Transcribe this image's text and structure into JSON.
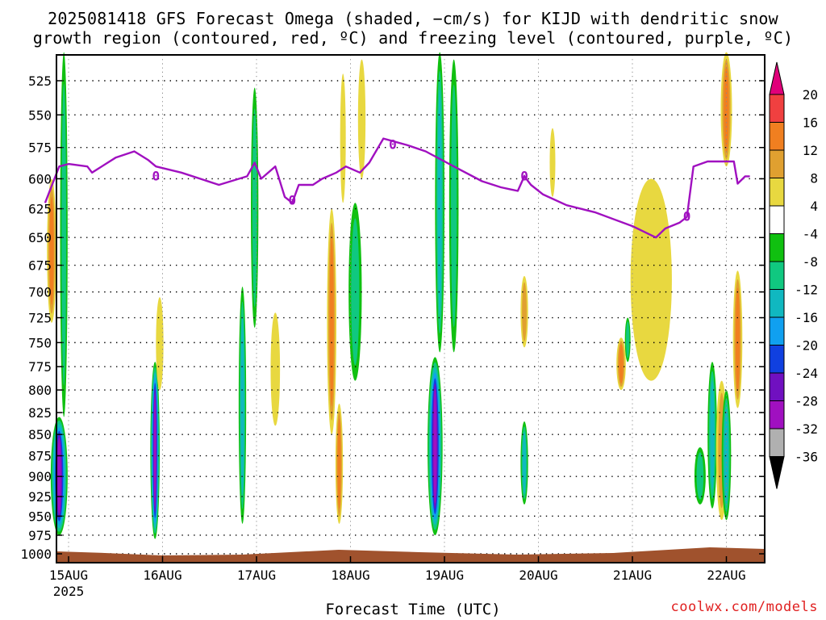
{
  "title_line1": "2025081418 GFS Forecast Omega (shaded, −cm/s) for KIJD with dendritic snow",
  "title_line2": "growth region (contoured, red, ºC) and freezing level (contoured, purple, ºC)",
  "credit": "coolwx.com/models",
  "chart_data": {
    "type": "heatmap",
    "xlabel": "Forecast Time (UTC)",
    "ylabel": "",
    "x_tick_labels": [
      "15AUG",
      "16AUG",
      "17AUG",
      "18AUG",
      "19AUG",
      "20AUG",
      "21AUG",
      "22AUG"
    ],
    "x_year_label": "2025",
    "x_range_days": [
      14.75,
      22.25
    ],
    "y_tick_labels": [
      525,
      550,
      575,
      600,
      625,
      650,
      675,
      700,
      725,
      750,
      775,
      800,
      825,
      850,
      875,
      900,
      925,
      950,
      975,
      1000
    ],
    "y_range_hpa": [
      500,
      1010
    ],
    "y_scale": "log-pressure",
    "grid": true,
    "colorbar_labels": [
      20,
      16,
      12,
      8,
      4,
      -4,
      -8,
      -12,
      -16,
      -20,
      -24,
      -28,
      -32,
      -36
    ],
    "colorbar_colors": [
      "#e0007a",
      "#f04040",
      "#f07f20",
      "#e0a030",
      "#e8d840",
      "#ffffff",
      "#10c010",
      "#10c880",
      "#10b8c0",
      "#10a0f0",
      "#1040e0",
      "#7010c0",
      "#a010c0",
      "#b0b0b0",
      "#000000"
    ],
    "freezing_level_color": "#a010c0",
    "freezing_level_label": "0",
    "freezing_level": [
      {
        "day": 14.75,
        "hpa": 620
      },
      {
        "day": 14.9,
        "hpa": 590
      },
      {
        "day": 15.0,
        "hpa": 588
      },
      {
        "day": 15.2,
        "hpa": 590
      },
      {
        "day": 15.25,
        "hpa": 595
      },
      {
        "day": 15.5,
        "hpa": 583
      },
      {
        "day": 15.7,
        "hpa": 578
      },
      {
        "day": 15.85,
        "hpa": 585
      },
      {
        "day": 15.93,
        "hpa": 590
      },
      {
        "day": 16.2,
        "hpa": 595
      },
      {
        "day": 16.6,
        "hpa": 605
      },
      {
        "day": 16.9,
        "hpa": 598
      },
      {
        "day": 16.98,
        "hpa": 587
      },
      {
        "day": 17.05,
        "hpa": 600
      },
      {
        "day": 17.2,
        "hpa": 590
      },
      {
        "day": 17.3,
        "hpa": 615
      },
      {
        "day": 17.38,
        "hpa": 620
      },
      {
        "day": 17.45,
        "hpa": 605
      },
      {
        "day": 17.6,
        "hpa": 605
      },
      {
        "day": 17.7,
        "hpa": 600
      },
      {
        "day": 17.85,
        "hpa": 595
      },
      {
        "day": 17.95,
        "hpa": 590
      },
      {
        "day": 18.1,
        "hpa": 595
      },
      {
        "day": 18.2,
        "hpa": 587
      },
      {
        "day": 18.35,
        "hpa": 568
      },
      {
        "day": 18.45,
        "hpa": 570
      },
      {
        "day": 18.6,
        "hpa": 573
      },
      {
        "day": 18.8,
        "hpa": 578
      },
      {
        "day": 19.1,
        "hpa": 590
      },
      {
        "day": 19.4,
        "hpa": 602
      },
      {
        "day": 19.6,
        "hpa": 607
      },
      {
        "day": 19.78,
        "hpa": 610
      },
      {
        "day": 19.85,
        "hpa": 598
      },
      {
        "day": 19.92,
        "hpa": 605
      },
      {
        "day": 20.05,
        "hpa": 613
      },
      {
        "day": 20.3,
        "hpa": 622
      },
      {
        "day": 20.6,
        "hpa": 628
      },
      {
        "day": 21.0,
        "hpa": 640
      },
      {
        "day": 21.25,
        "hpa": 650
      },
      {
        "day": 21.35,
        "hpa": 642
      },
      {
        "day": 21.5,
        "hpa": 637
      },
      {
        "day": 21.58,
        "hpa": 632
      },
      {
        "day": 21.65,
        "hpa": 590
      },
      {
        "day": 21.8,
        "hpa": 586
      },
      {
        "day": 22.08,
        "hpa": 586
      },
      {
        "day": 22.12,
        "hpa": 604
      },
      {
        "day": 22.2,
        "hpa": 598
      },
      {
        "day": 22.25,
        "hpa": 598
      }
    ],
    "omega_features": [
      {
        "day": 14.9,
        "top": 830,
        "bottom": 975,
        "halfwidth": 0.09,
        "peak": -28
      },
      {
        "day": 14.95,
        "top": 505,
        "bottom": 830,
        "halfwidth": 0.04,
        "peak": -8
      },
      {
        "day": 14.82,
        "top": 600,
        "bottom": 730,
        "halfwidth": 0.05,
        "peak": 12
      },
      {
        "day": 15.92,
        "top": 770,
        "bottom": 980,
        "halfwidth": 0.05,
        "peak": -28
      },
      {
        "day": 15.97,
        "top": 705,
        "bottom": 800,
        "halfwidth": 0.04,
        "peak": 4
      },
      {
        "day": 16.85,
        "top": 695,
        "bottom": 960,
        "halfwidth": 0.04,
        "peak": -12
      },
      {
        "day": 16.98,
        "top": 530,
        "bottom": 735,
        "halfwidth": 0.04,
        "peak": -8
      },
      {
        "day": 17.2,
        "top": 720,
        "bottom": 840,
        "halfwidth": 0.05,
        "peak": 4
      },
      {
        "day": 17.8,
        "top": 625,
        "bottom": 850,
        "halfwidth": 0.05,
        "peak": 12
      },
      {
        "day": 17.88,
        "top": 815,
        "bottom": 960,
        "halfwidth": 0.04,
        "peak": 12
      },
      {
        "day": 17.92,
        "top": 520,
        "bottom": 620,
        "halfwidth": 0.03,
        "peak": 4
      },
      {
        "day": 18.05,
        "top": 620,
        "bottom": 790,
        "halfwidth": 0.07,
        "peak": -8
      },
      {
        "day": 18.12,
        "top": 510,
        "bottom": 600,
        "halfwidth": 0.04,
        "peak": 4
      },
      {
        "day": 18.9,
        "top": 765,
        "bottom": 975,
        "halfwidth": 0.08,
        "peak": -28
      },
      {
        "day": 18.95,
        "top": 505,
        "bottom": 760,
        "halfwidth": 0.05,
        "peak": -12
      },
      {
        "day": 19.1,
        "top": 510,
        "bottom": 760,
        "halfwidth": 0.05,
        "peak": -8
      },
      {
        "day": 19.85,
        "top": 685,
        "bottom": 755,
        "halfwidth": 0.04,
        "peak": 8
      },
      {
        "day": 19.85,
        "top": 835,
        "bottom": 935,
        "halfwidth": 0.04,
        "peak": -12
      },
      {
        "day": 20.15,
        "top": 560,
        "bottom": 615,
        "halfwidth": 0.03,
        "peak": 4
      },
      {
        "day": 20.88,
        "top": 745,
        "bottom": 800,
        "halfwidth": 0.05,
        "peak": 12
      },
      {
        "day": 20.95,
        "top": 725,
        "bottom": 770,
        "halfwidth": 0.03,
        "peak": -8
      },
      {
        "day": 21.2,
        "top": 600,
        "bottom": 790,
        "halfwidth": 0.22,
        "peak": 4
      },
      {
        "day": 21.72,
        "top": 865,
        "bottom": 935,
        "halfwidth": 0.06,
        "peak": -8
      },
      {
        "day": 21.85,
        "top": 770,
        "bottom": 940,
        "halfwidth": 0.05,
        "peak": -12
      },
      {
        "day": 21.95,
        "top": 790,
        "bottom": 955,
        "halfwidth": 0.06,
        "peak": 8
      },
      {
        "day": 22.0,
        "top": 800,
        "bottom": 955,
        "halfwidth": 0.05,
        "peak": -12
      },
      {
        "day": 22.12,
        "top": 680,
        "bottom": 820,
        "halfwidth": 0.05,
        "peak": 12
      },
      {
        "day": 22.0,
        "top": 505,
        "bottom": 590,
        "halfwidth": 0.06,
        "peak": 12
      }
    ]
  }
}
